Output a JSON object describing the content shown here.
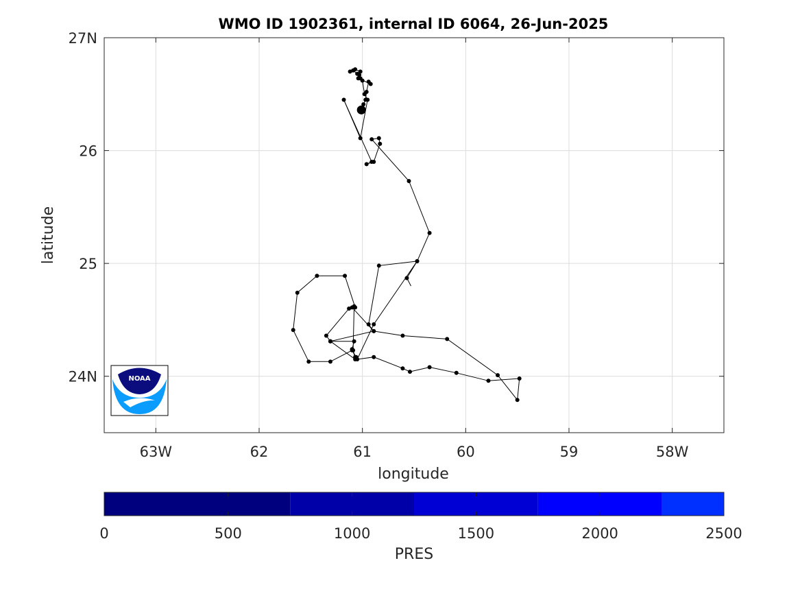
{
  "chart_data": {
    "type": "line",
    "title": "WMO ID 1902361, internal ID 6064, 26-Jun-2025",
    "xlabel": "longitude",
    "ylabel": "latitude",
    "xlim": [
      -63.5,
      -57.5
    ],
    "ylim": [
      23.5,
      27
    ],
    "grid": true,
    "x_ticks": [
      {
        "value": -63,
        "label": "63W"
      },
      {
        "value": -62,
        "label": "62"
      },
      {
        "value": -61,
        "label": "61"
      },
      {
        "value": -60,
        "label": "60"
      },
      {
        "value": -59,
        "label": "59"
      },
      {
        "value": -58,
        "label": "58W"
      }
    ],
    "y_ticks": [
      {
        "value": 24,
        "label": "24N"
      },
      {
        "value": 25,
        "label": "25"
      },
      {
        "value": 26,
        "label": "26"
      },
      {
        "value": 27,
        "label": "27N"
      }
    ],
    "series": [
      {
        "x": [
          -60.53,
          -60.57,
          -60.47,
          -60.84,
          -60.94,
          -60.89,
          -61.1,
          -61.13,
          -61.35,
          -61.31,
          -61.08,
          -61.1,
          -61.07,
          -61.09,
          -61.08,
          -61.07,
          -61.17,
          -61.44,
          -61.63,
          -61.67,
          -61.52,
          -61.31,
          -61.1,
          -61.06,
          -61.07,
          -61.31,
          -61.31,
          -60.89,
          -60.61,
          -60.18,
          -59.69,
          -59.5,
          -59.48,
          -59.78,
          -60.09,
          -60.35,
          -60.54,
          -60.61,
          -60.89,
          -61.05,
          -60.89,
          -60.47,
          -60.35,
          -60.55,
          -60.91,
          -60.84,
          -60.83,
          -60.89,
          -60.96,
          -60.91,
          -61.18,
          -61.02,
          -60.95,
          -60.98,
          -61.0,
          -61.02,
          -61.05,
          -61.09,
          -61.12,
          -61.07,
          -61.02,
          -61.03,
          -61.04,
          -60.92,
          -60.94,
          -60.96,
          -60.97,
          -60.99,
          -61.0,
          -61.01,
          -61.01
        ],
        "y": [
          24.8,
          24.87,
          25.02,
          24.98,
          24.46,
          24.4,
          24.61,
          24.6,
          24.36,
          24.31,
          24.31,
          24.24,
          24.17,
          24.23,
          24.62,
          24.61,
          24.89,
          24.89,
          24.74,
          24.41,
          24.13,
          24.13,
          24.23,
          24.17,
          24.15,
          24.31,
          24.31,
          24.4,
          24.36,
          24.33,
          24.01,
          23.79,
          23.98,
          23.96,
          24.03,
          24.08,
          24.04,
          24.07,
          24.17,
          24.15,
          24.46,
          25.02,
          25.27,
          25.73,
          26.1,
          26.11,
          26.06,
          25.9,
          25.88,
          25.9,
          26.45,
          26.11,
          26.45,
          26.5,
          26.62,
          26.64,
          26.68,
          26.71,
          26.7,
          26.72,
          26.7,
          26.67,
          26.64,
          26.59,
          26.61,
          26.52,
          26.45,
          26.41,
          26.38,
          26.35,
          26.36
        ]
      }
    ],
    "last_point": {
      "x": -61.01,
      "y": 26.36
    },
    "colorbar": {
      "label": "PRES",
      "range": [
        0,
        2500
      ],
      "ticks": [
        0,
        500,
        1000,
        1500,
        2000,
        2500
      ],
      "bands": [
        {
          "from": 0,
          "to": 750,
          "color": "#00007f"
        },
        {
          "from": 750,
          "to": 1250,
          "color": "#0000a8"
        },
        {
          "from": 1250,
          "to": 1750,
          "color": "#0000d4"
        },
        {
          "from": 1750,
          "to": 2250,
          "color": "#0000ff"
        },
        {
          "from": 2250,
          "to": 2500,
          "color": "#0030ff"
        }
      ]
    },
    "logo": {
      "text": "NOAA",
      "dark": "#0b0d7e",
      "light": "#0a9cff"
    }
  }
}
